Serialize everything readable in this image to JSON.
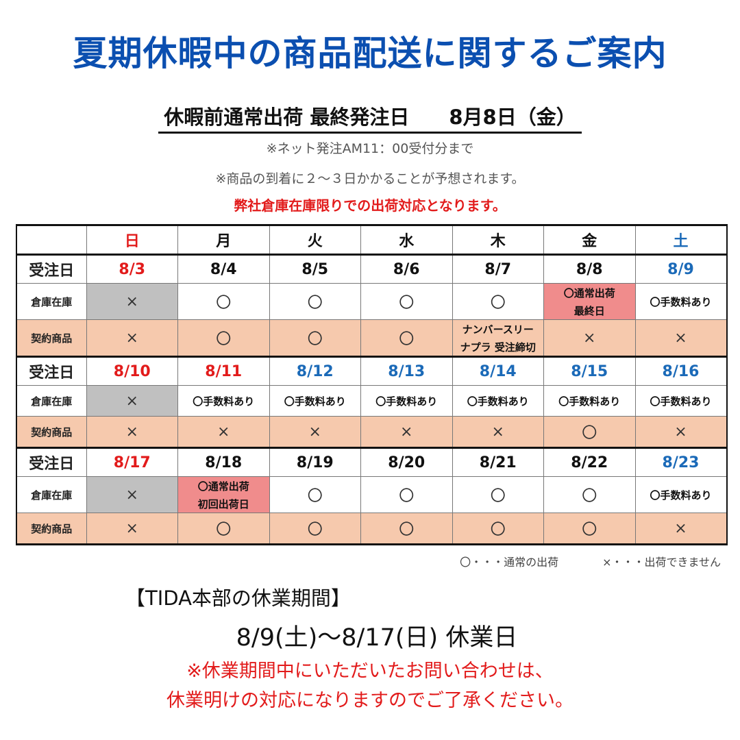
{
  "title": "夏期休暇中の商品配送に関するご案内",
  "subtitle": "休暇前通常出荷 最終発注日　　8月8日（金）",
  "notes": [
    "※ネット発注AM11：00受付分まで",
    "※商品の到着に２～３日かかることが予想されます。"
  ],
  "note_red": "弊社倉庫在庫限りでの出荷対応となります。",
  "colors": {
    "title": "#0b4fb0",
    "sunday": "#e21b1b",
    "saturday": "#1b6ab8",
    "contract_bg": "#f6c9ad",
    "closed_bg": "#c0c0c0",
    "highlight_bg": "#f08c8c"
  },
  "weekdays": [
    {
      "label": "日",
      "color": "red"
    },
    {
      "label": "月",
      "color": "black"
    },
    {
      "label": "火",
      "color": "black"
    },
    {
      "label": "水",
      "color": "black"
    },
    {
      "label": "木",
      "color": "black"
    },
    {
      "label": "金",
      "color": "black"
    },
    {
      "label": "土",
      "color": "blue"
    }
  ],
  "row_labels": {
    "date": "受注日",
    "warehouse": "倉庫在庫",
    "contract": "契約商品"
  },
  "weeks": [
    {
      "dates": [
        {
          "text": "8/3",
          "color": "red"
        },
        {
          "text": "8/4",
          "color": "black"
        },
        {
          "text": "8/5",
          "color": "black"
        },
        {
          "text": "8/6",
          "color": "black"
        },
        {
          "text": "8/7",
          "color": "black"
        },
        {
          "text": "8/8",
          "color": "black"
        },
        {
          "text": "8/9",
          "color": "blue"
        }
      ],
      "warehouse": [
        {
          "text": "×",
          "kind": "sym",
          "bg": "gray"
        },
        {
          "text": "〇",
          "kind": "sym"
        },
        {
          "text": "〇",
          "kind": "sym"
        },
        {
          "text": "〇",
          "kind": "sym"
        },
        {
          "text": "〇",
          "kind": "sym"
        },
        {
          "text": "〇通常出荷\n最終日",
          "kind": "txt",
          "bg": "pink"
        },
        {
          "text": "〇手数料あり",
          "kind": "txt"
        }
      ],
      "contract": [
        {
          "text": "×",
          "kind": "sym"
        },
        {
          "text": "〇",
          "kind": "sym"
        },
        {
          "text": "〇",
          "kind": "sym"
        },
        {
          "text": "〇",
          "kind": "sym"
        },
        {
          "text": "ナンバースリー\nナプラ 受注締切",
          "kind": "txt"
        },
        {
          "text": "×",
          "kind": "sym"
        },
        {
          "text": "×",
          "kind": "sym"
        }
      ]
    },
    {
      "dates": [
        {
          "text": "8/10",
          "color": "red"
        },
        {
          "text": "8/11",
          "color": "red"
        },
        {
          "text": "8/12",
          "color": "blue"
        },
        {
          "text": "8/13",
          "color": "blue"
        },
        {
          "text": "8/14",
          "color": "blue"
        },
        {
          "text": "8/15",
          "color": "blue"
        },
        {
          "text": "8/16",
          "color": "blue"
        }
      ],
      "warehouse": [
        {
          "text": "×",
          "kind": "sym",
          "bg": "gray"
        },
        {
          "text": "〇手数料あり",
          "kind": "txt"
        },
        {
          "text": "〇手数料あり",
          "kind": "txt"
        },
        {
          "text": "〇手数料あり",
          "kind": "txt"
        },
        {
          "text": "〇手数料あり",
          "kind": "txt"
        },
        {
          "text": "〇手数料あり",
          "kind": "txt"
        },
        {
          "text": "〇手数料あり",
          "kind": "txt"
        }
      ],
      "contract": [
        {
          "text": "×",
          "kind": "sym"
        },
        {
          "text": "×",
          "kind": "sym"
        },
        {
          "text": "×",
          "kind": "sym"
        },
        {
          "text": "×",
          "kind": "sym"
        },
        {
          "text": "×",
          "kind": "sym"
        },
        {
          "text": "〇",
          "kind": "sym"
        },
        {
          "text": "×",
          "kind": "sym"
        }
      ]
    },
    {
      "dates": [
        {
          "text": "8/17",
          "color": "red"
        },
        {
          "text": "8/18",
          "color": "black"
        },
        {
          "text": "8/19",
          "color": "black"
        },
        {
          "text": "8/20",
          "color": "black"
        },
        {
          "text": "8/21",
          "color": "black"
        },
        {
          "text": "8/22",
          "color": "black"
        },
        {
          "text": "8/23",
          "color": "blue"
        }
      ],
      "warehouse": [
        {
          "text": "×",
          "kind": "sym",
          "bg": "gray"
        },
        {
          "text": "〇通常出荷\n初回出荷日",
          "kind": "txt",
          "bg": "pink"
        },
        {
          "text": "〇",
          "kind": "sym"
        },
        {
          "text": "〇",
          "kind": "sym"
        },
        {
          "text": "〇",
          "kind": "sym"
        },
        {
          "text": "〇",
          "kind": "sym"
        },
        {
          "text": "〇手数料あり",
          "kind": "txt"
        }
      ],
      "contract": [
        {
          "text": "×",
          "kind": "sym"
        },
        {
          "text": "〇",
          "kind": "sym"
        },
        {
          "text": "〇",
          "kind": "sym"
        },
        {
          "text": "〇",
          "kind": "sym"
        },
        {
          "text": "〇",
          "kind": "sym"
        },
        {
          "text": "〇",
          "kind": "sym"
        },
        {
          "text": "×",
          "kind": "sym"
        }
      ]
    }
  ],
  "legend": "〇・・・通常の出荷　　　　×・・・出荷できません",
  "closure": {
    "heading": "【TIDA本部の休業期間】",
    "dates": "8/9(土)～8/17(日) 休業日",
    "note_lines": [
      "※休業期間中にいただいたお問い合わせは、",
      "休業明けの対応になりますのでご了承ください。"
    ]
  }
}
